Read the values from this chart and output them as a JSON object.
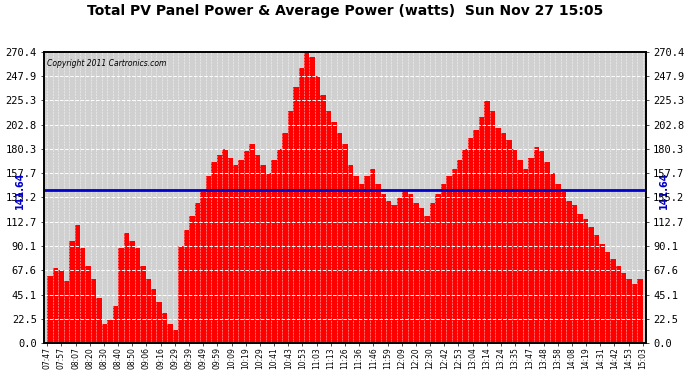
{
  "title": "Total PV Panel Power & Average Power (watts)  Sun Nov 27 15:05",
  "copyright": "Copyright 2011 Cartronics.com",
  "average_line": 141.64,
  "average_label": "141.64",
  "ylim_max": 270.4,
  "yticks": [
    0.0,
    22.5,
    45.1,
    67.6,
    90.1,
    112.7,
    135.2,
    157.7,
    180.3,
    202.8,
    225.3,
    247.9,
    270.4
  ],
  "bar_color": "#FF0000",
  "line_color": "#0000CC",
  "bg_color": "#D8D8D8",
  "grid_color": "#FFFFFF",
  "xtick_labels": [
    "07:47",
    "07:57",
    "08:07",
    "08:20",
    "08:30",
    "08:40",
    "08:50",
    "09:06",
    "09:16",
    "09:29",
    "09:39",
    "09:49",
    "09:59",
    "10:09",
    "10:19",
    "10:29",
    "10:41",
    "10:43",
    "10:53",
    "11:03",
    "11:13",
    "11:26",
    "11:36",
    "11:46",
    "11:59",
    "12:09",
    "12:20",
    "12:30",
    "12:42",
    "12:53",
    "13:04",
    "13:14",
    "13:24",
    "13:35",
    "13:47",
    "13:48",
    "13:58",
    "14:08",
    "14:19",
    "14:31",
    "14:42",
    "14:53",
    "15:03"
  ],
  "values": [
    55,
    62,
    70,
    68,
    58,
    95,
    110,
    88,
    72,
    60,
    42,
    18,
    22,
    35,
    88,
    102,
    95,
    88,
    72,
    60,
    50,
    38,
    28,
    18,
    12,
    90,
    105,
    118,
    130,
    140,
    155,
    168,
    175,
    180,
    172,
    165,
    170,
    178,
    185,
    175,
    165,
    158,
    170,
    180,
    195,
    215,
    238,
    255,
    270,
    265,
    248,
    230,
    215,
    205,
    195,
    185,
    165,
    155,
    148,
    155,
    162,
    148,
    138,
    132,
    128,
    135,
    142,
    138,
    130,
    125,
    118,
    130,
    138,
    148,
    155,
    162,
    170,
    180,
    190,
    198,
    210,
    225,
    215,
    200,
    195,
    188,
    180,
    170,
    162,
    172,
    182,
    178,
    168,
    158,
    148,
    140,
    132,
    128,
    120,
    115,
    108,
    100,
    92,
    85,
    78,
    72,
    65,
    60,
    55,
    60
  ]
}
